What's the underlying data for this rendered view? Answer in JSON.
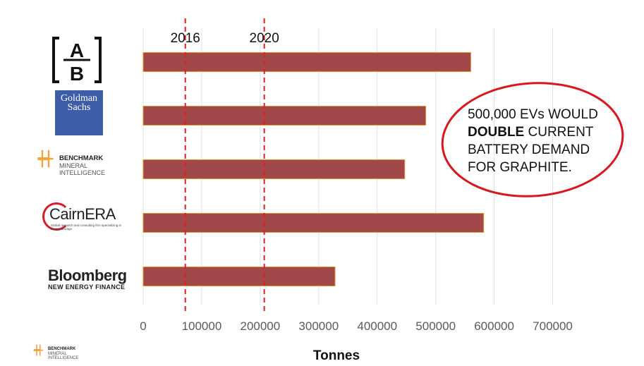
{
  "chart_data": {
    "type": "bar",
    "orientation": "horizontal",
    "categories": [
      "AB",
      "Goldman Sachs",
      "Benchmark Mineral Intelligence",
      "CairnERA",
      "Bloomberg New Energy Finance"
    ],
    "values": [
      560000,
      483000,
      447000,
      582000,
      328000
    ],
    "xlabel": "Tonnes",
    "xlim": [
      0,
      750000
    ],
    "xticks": [
      0,
      100000,
      200000,
      300000,
      400000,
      500000,
      600000,
      700000
    ],
    "xtick_labels": [
      "0",
      "100000",
      "200000",
      "300000",
      "400000",
      "500000",
      "600000",
      "700000"
    ],
    "reference_lines": [
      {
        "label": "2016",
        "value": 72000
      },
      {
        "label": "2020",
        "value": 207000
      }
    ],
    "grid": "vertical",
    "bar_color": "#a0484a",
    "bar_border_color": "#e8952e",
    "reference_line_color": "#e02020"
  },
  "logos": {
    "ab": {
      "top": "A",
      "bottom": "B"
    },
    "goldman": {
      "line1": "Goldman",
      "line2": "Sachs"
    },
    "benchmark": {
      "line1": "BENCHMARK",
      "line2": "MINERAL",
      "line3": "INTELLIGENCE"
    },
    "cairn": {
      "name": "CairnERA",
      "sub": "Global research and consulting firm specializing in energy storage"
    },
    "bloomberg": {
      "name": "Bloomberg",
      "sub": "NEW ENERGY FINANCE"
    },
    "footer_benchmark": {
      "line1": "BENCHMARK",
      "line2": "MINERAL",
      "line3": "INTELLIGENCE"
    }
  },
  "callout": {
    "line1": "500,000 EVs WOULD",
    "bold_word": "DOUBLE",
    "line2_rest": " CURRENT",
    "line3": "BATTERY DEMAND",
    "line4": "FOR GRAPHITE."
  }
}
